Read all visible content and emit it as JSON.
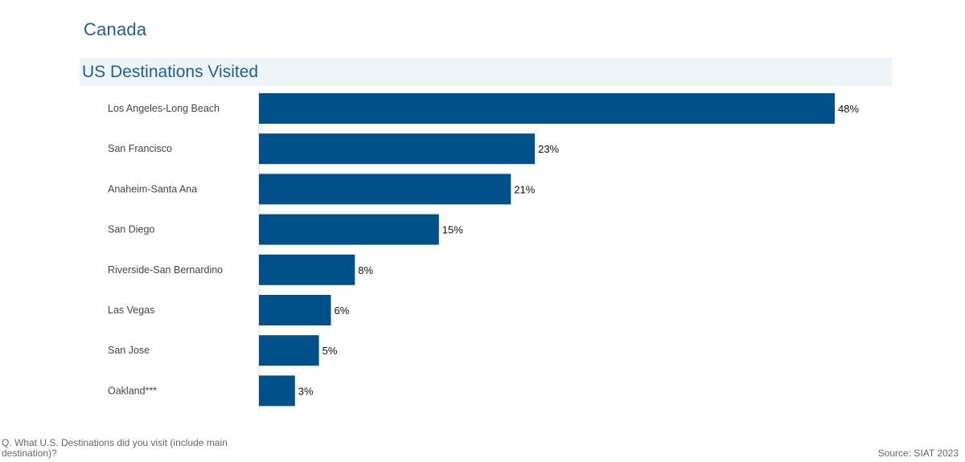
{
  "page": {
    "title": "Canada",
    "footnote": "Q. What U.S. Destinations did you visit (include main destination)?",
    "source": "Source: SIAT 2023"
  },
  "colors": {
    "bar": "#00518a",
    "title": "#1f5f96",
    "band": "#edf5f8",
    "category_label": "#444444",
    "value_label": "#111111"
  },
  "chart_data": {
    "type": "bar",
    "orientation": "horizontal",
    "title": "US Destinations Visited",
    "categories": [
      "Los Angeles-Long Beach",
      "San Francisco",
      "Anaheim-Santa Ana",
      "San Diego",
      "Riverside-San Bernardino",
      "Las Vegas",
      "San Jose",
      "Oakland***"
    ],
    "values": [
      48,
      23,
      21,
      15,
      8,
      6,
      5,
      3
    ],
    "value_labels": [
      "48%",
      "23%",
      "21%",
      "15%",
      "8%",
      "6%",
      "5%",
      "3%"
    ],
    "xlim": [
      0,
      48
    ],
    "grid": false,
    "legend": "none"
  }
}
